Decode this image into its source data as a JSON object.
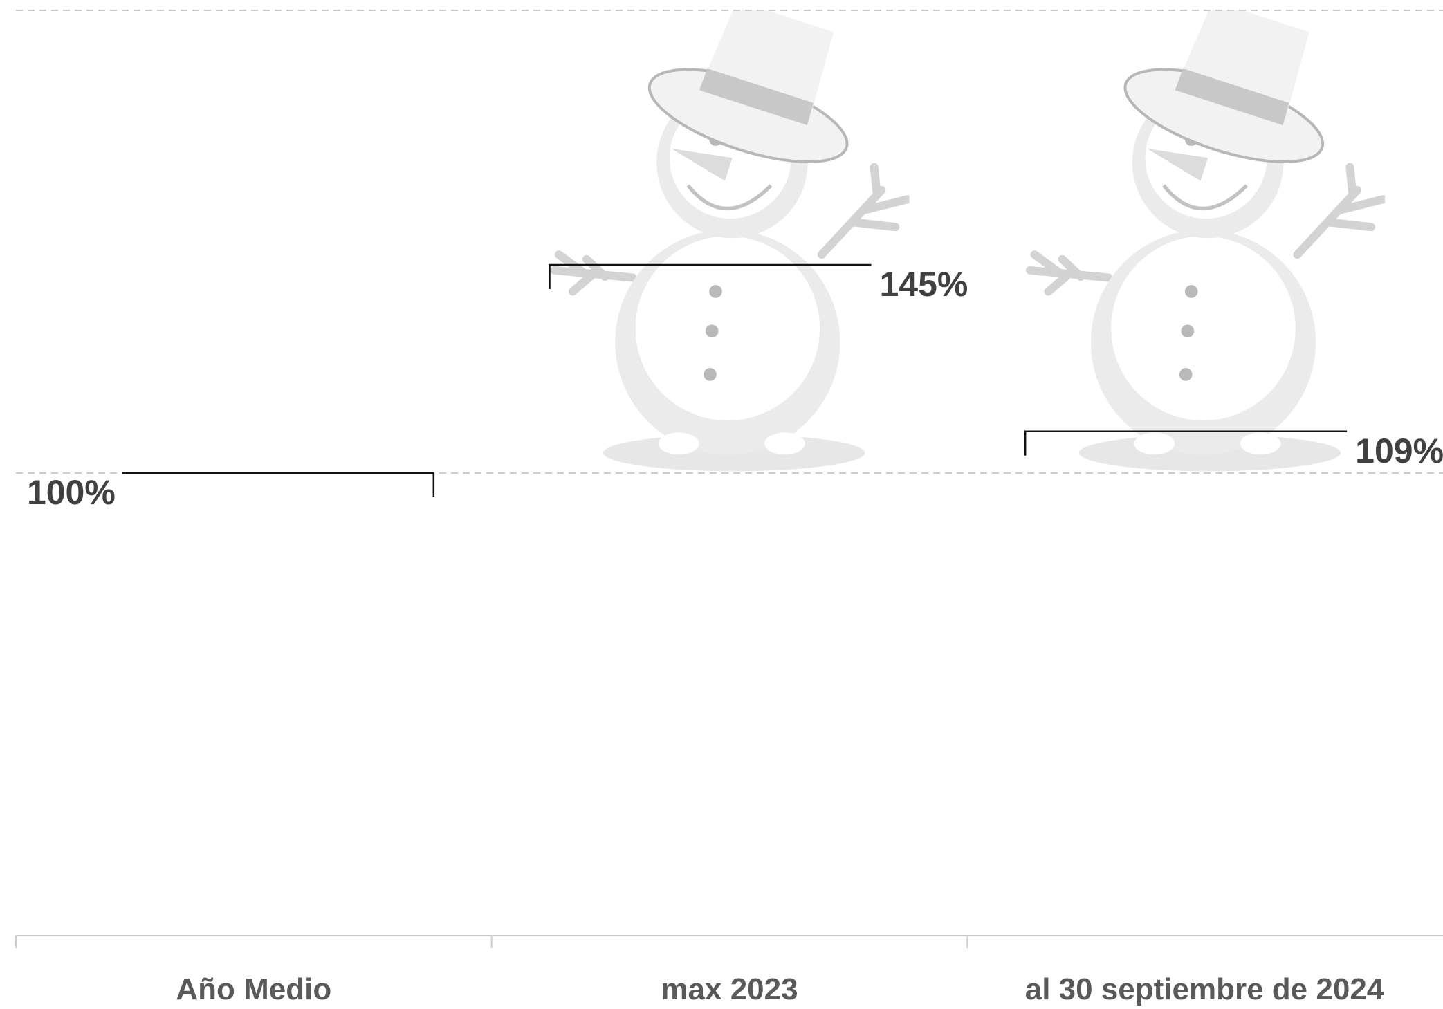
{
  "chart_data": {
    "type": "pictograph",
    "categories": [
      "Año Medio",
      "max 2023",
      "al 30 septiembre de 2024"
    ],
    "values": [
      100,
      145,
      109
    ],
    "value_labels": [
      "100%",
      "145%",
      "109%"
    ],
    "ylim": [
      0,
      200
    ],
    "yticks": [
      0,
      100,
      200
    ],
    "grid": true
  }
}
